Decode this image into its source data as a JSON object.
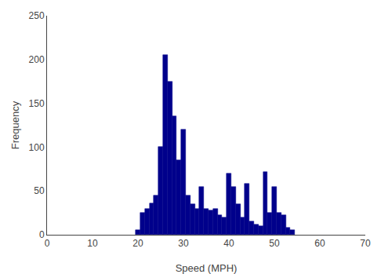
{
  "chart_data": {
    "type": "bar",
    "x": [
      20,
      21,
      22,
      23,
      24,
      25,
      26,
      27,
      28,
      29,
      30,
      31,
      32,
      33,
      34,
      35,
      36,
      37,
      38,
      39,
      40,
      41,
      42,
      43,
      44,
      45,
      46,
      47,
      48,
      49,
      50,
      51,
      52,
      53,
      54
    ],
    "values": [
      5,
      25,
      30,
      36,
      45,
      100,
      205,
      175,
      135,
      85,
      120,
      45,
      35,
      30,
      55,
      30,
      28,
      30,
      22,
      20,
      70,
      55,
      35,
      20,
      58,
      15,
      12,
      10,
      72,
      25,
      55,
      25,
      22,
      8,
      5
    ],
    "color": "#00008B",
    "xlabel": "Speed (MPH)",
    "ylabel": "Frequency",
    "xlim": [
      0,
      70
    ],
    "ylim": [
      0,
      250
    ],
    "xticks": [
      0,
      10,
      20,
      30,
      40,
      50,
      60,
      70
    ],
    "yticks": [
      0,
      50,
      100,
      150,
      200,
      250
    ],
    "grid": false
  }
}
